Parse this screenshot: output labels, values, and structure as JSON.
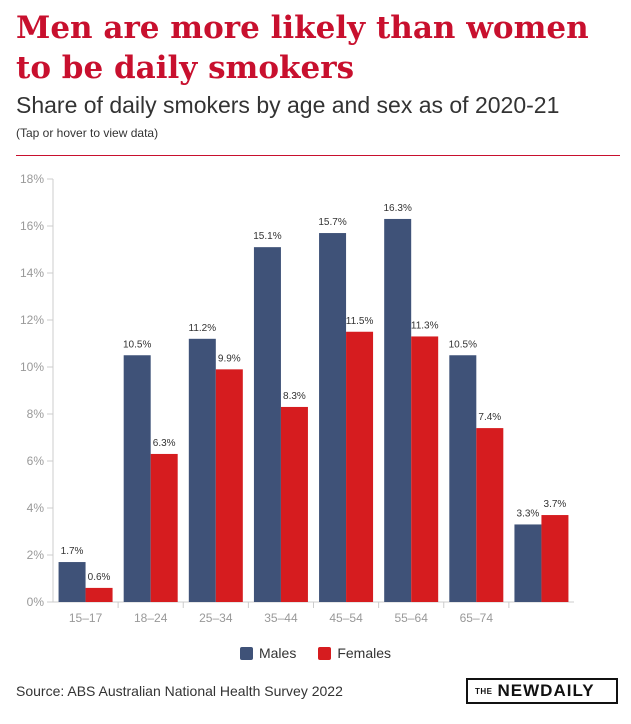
{
  "title": "Men are more likely than women to be daily smokers",
  "subtitle": "Share of daily smokers by age and sex as of 2020-21",
  "hint": "(Tap or hover to view data)",
  "source": "Source: ABS Australian National Health Survey 2022",
  "logo": {
    "prefix": "THE",
    "main": "NEWDAILY"
  },
  "colors": {
    "accent": "#c8102e",
    "males": "#3f5278",
    "females": "#d61c1f"
  },
  "chart_data": {
    "type": "bar",
    "categories": [
      "15–17",
      "18–24",
      "25–34",
      "35–44",
      "45–54",
      "55–64",
      "65–74",
      ""
    ],
    "series": [
      {
        "name": "Males",
        "values": [
          1.7,
          10.5,
          11.2,
          15.1,
          15.7,
          16.3,
          10.5,
          3.3
        ],
        "labels": [
          "1.7%",
          "10.5%",
          "11.2%",
          "15.1%",
          "15.7%",
          "16.3%",
          "10.5%",
          "3.3%"
        ]
      },
      {
        "name": "Females",
        "values": [
          0.6,
          6.3,
          9.9,
          8.3,
          11.5,
          11.3,
          7.4,
          3.7
        ],
        "labels": [
          "0.6%",
          "6.3%",
          "9.9%",
          "8.3%",
          "11.5%",
          "11.3%",
          "7.4%",
          "3.7%"
        ]
      }
    ],
    "yticks": [
      "0%",
      "2%",
      "4%",
      "6%",
      "8%",
      "10%",
      "12%",
      "14%",
      "16%",
      "18%"
    ],
    "ylim": [
      0,
      18
    ],
    "legend": "bottom-center"
  }
}
